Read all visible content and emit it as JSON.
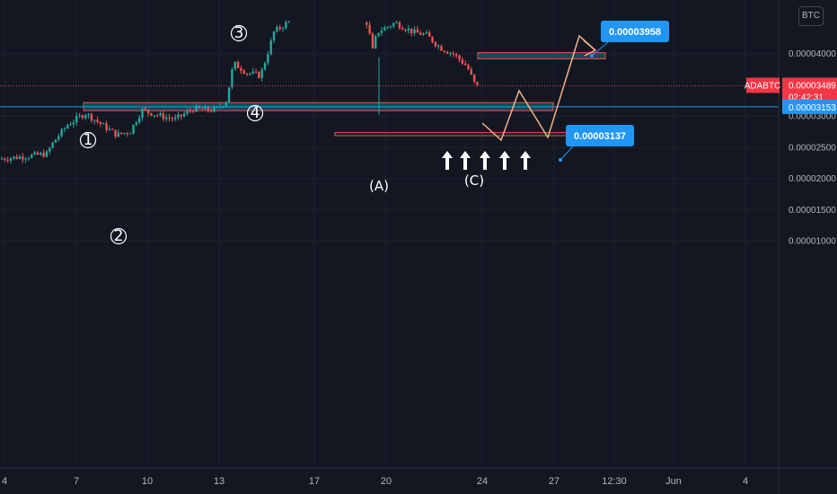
{
  "chart_data": {
    "type": "candlestick",
    "symbol": "ADABTC",
    "currency": "BTC",
    "y_ticks": [
      {
        "value": 4e-05,
        "label": "0.00004000"
      },
      {
        "value": 3e-05,
        "label": "0.00003000"
      },
      {
        "value": 2.5e-05,
        "label": "0.00002500"
      },
      {
        "value": 2e-05,
        "label": "0.00002000"
      },
      {
        "value": 1.5e-05,
        "label": "0.00001500"
      },
      {
        "value": 1e-05,
        "label": "0.00001000"
      }
    ],
    "x_ticks": [
      "4",
      "7",
      "10",
      "13",
      "17",
      "20",
      "24",
      "27",
      "12:30",
      "Jun",
      "4"
    ],
    "last_price": {
      "label": "0.00003489",
      "value": 3.489e-05,
      "countdown": "02:42:31",
      "color": "#f23645"
    },
    "horizontal_line": {
      "label": "0.00003153",
      "value": 3.153e-05,
      "color": "#2196f3"
    },
    "targets": [
      {
        "label": "0.00003958",
        "value": 3.958e-05
      },
      {
        "label": "0.00003137",
        "value": 3.137e-05
      }
    ],
    "zones": [
      {
        "low": 3.09e-05,
        "high": 3.22e-05,
        "style": "filled"
      },
      {
        "low": 3.92e-05,
        "high": 4.02e-05,
        "style": "filled"
      },
      {
        "low": 2.69e-05,
        "high": 2.74e-05,
        "style": "outline"
      }
    ],
    "wave_labels": [
      "1",
      "2",
      "3",
      "4",
      "(A)",
      "(C)"
    ],
    "colors": {
      "up": "#26a69a",
      "down": "#ef5350",
      "zone_border": "#e0534c",
      "zone_fill": "#1a5c64",
      "projection": "#f5b086",
      "callout": "#2196f3",
      "background": "#131722"
    }
  }
}
